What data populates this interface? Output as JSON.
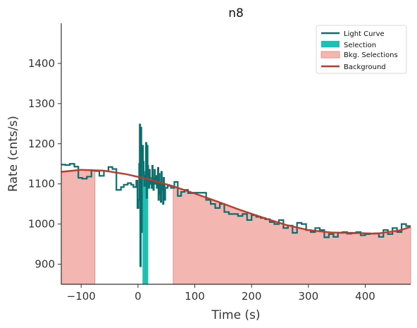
{
  "chart_data": {
    "type": "line",
    "title": "n8",
    "xlabel": "Time (s)",
    "ylabel": "Rate (cnts/s)",
    "xlim": [
      -135,
      480
    ],
    "ylim": [
      850,
      1500
    ],
    "xticks": [
      -100,
      0,
      100,
      200,
      300,
      400
    ],
    "yticks": [
      900,
      1000,
      1100,
      1200,
      1300,
      1400
    ],
    "grid": false,
    "legend_position": "top-right",
    "legend": [
      "Light Curve",
      "Selection",
      "Bkg. Selections",
      "Background"
    ],
    "colors": {
      "light_curve": "#0d6e6e",
      "selection": "#1fbfb3",
      "bkg_selection_fill": "#f3b6b1",
      "bkg_selection_edge": "#e8948d",
      "background": "#c0392b",
      "axis": "#333333"
    },
    "selection": [
      [
        8,
        18
      ]
    ],
    "bkg_selections": [
      [
        -135,
        -76
      ],
      [
        62,
        480
      ]
    ],
    "background_model": {
      "x": [
        -135,
        -100,
        -60,
        -20,
        20,
        60,
        100,
        140,
        180,
        220,
        260,
        300,
        340,
        380,
        420,
        460,
        480
      ],
      "y": [
        1130,
        1135,
        1133,
        1124,
        1111,
        1095,
        1076,
        1056,
        1035,
        1016,
        998,
        985,
        979,
        978,
        976,
        984,
        993
      ]
    },
    "light_curve": {
      "x": [
        -135,
        -128,
        -120,
        -112,
        -105,
        -98,
        -90,
        -82,
        -75,
        -68,
        -60,
        -52,
        -45,
        -38,
        -30,
        -25,
        -18,
        -12,
        -8,
        -3,
        -1,
        1,
        2,
        3,
        4,
        5,
        6,
        7,
        8,
        9,
        10,
        11,
        12,
        13,
        14,
        15,
        16,
        17,
        18,
        19,
        20,
        21,
        22,
        23,
        24,
        25,
        26,
        27,
        28,
        29,
        30,
        31,
        32,
        33,
        34,
        35,
        36,
        37,
        38,
        39,
        40,
        41,
        42,
        43,
        44,
        45,
        46,
        47,
        48,
        52,
        58,
        64,
        70,
        76,
        82,
        88,
        96,
        104,
        112,
        120,
        128,
        136,
        144,
        152,
        160,
        168,
        176,
        184,
        192,
        200,
        208,
        216,
        224,
        232,
        240,
        248,
        256,
        264,
        272,
        280,
        288,
        296,
        304,
        312,
        320,
        328,
        336,
        344,
        352,
        360,
        368,
        376,
        384,
        392,
        400,
        408,
        416,
        424,
        432,
        440,
        448,
        456,
        464,
        472
      ],
      "y": [
        1148,
        1147,
        1150,
        1143,
        1115,
        1113,
        1118,
        1133,
        1132,
        1120,
        1132,
        1142,
        1137,
        1085,
        1092,
        1098,
        1102,
        1098,
        1092,
        1108,
        1040,
        1060,
        1150,
        1248,
        895,
        1240,
        980,
        1180,
        1195,
        1155,
        1120,
        1095,
        1115,
        1130,
        1202,
        1065,
        1195,
        1145,
        1120,
        1090,
        1135,
        1115,
        1100,
        1105,
        1090,
        1145,
        1115,
        1085,
        1100,
        1135,
        1100,
        1110,
        1120,
        1090,
        1115,
        1140,
        1060,
        1125,
        1100,
        1075,
        1055,
        1130,
        1085,
        1100,
        1050,
        1115,
        1100,
        1060,
        1090,
        1095,
        1090,
        1105,
        1070,
        1080,
        1085,
        1077,
        1078,
        1078,
        1078,
        1060,
        1050,
        1040,
        1050,
        1030,
        1025,
        1025,
        1020,
        1025,
        1010,
        1022,
        1018,
        1015,
        1012,
        1005,
        1000,
        1010,
        990,
        996,
        978,
        1003,
        1000,
        985,
        980,
        990,
        985,
        967,
        975,
        968,
        978,
        980,
        976,
        977,
        980,
        972,
        975,
        976,
        977,
        968,
        985,
        975,
        990,
        980,
        1000,
        995
      ]
    }
  }
}
